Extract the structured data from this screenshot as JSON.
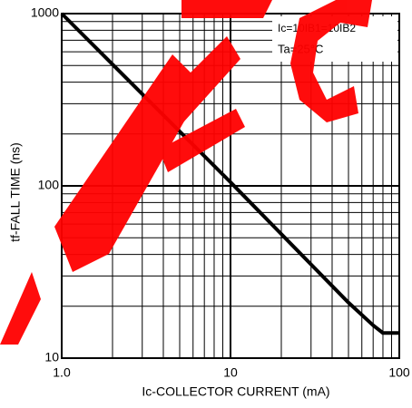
{
  "chart_data": {
    "type": "line",
    "x": [
      1,
      10,
      50,
      70,
      80,
      100
    ],
    "series": [
      {
        "color": "#000000",
        "values": [
          1000,
          105,
          21,
          15.5,
          14,
          14
        ]
      }
    ],
    "xlim": [
      1,
      100
    ],
    "ylim": [
      10,
      1000
    ],
    "xticks": [
      {
        "value": 1,
        "label": "1.0"
      },
      10,
      100
    ],
    "yticks": [
      10,
      100,
      1000
    ],
    "log_x": true,
    "log_y": true,
    "grid": true,
    "xlabel": "Ic-COLLECTOR  CURRENT (mA)",
    "ylabel": "tf-FALL  TIME (ns)",
    "annotations": [
      "Ic=10IB1=10IB2",
      "Ta=25°C"
    ]
  }
}
